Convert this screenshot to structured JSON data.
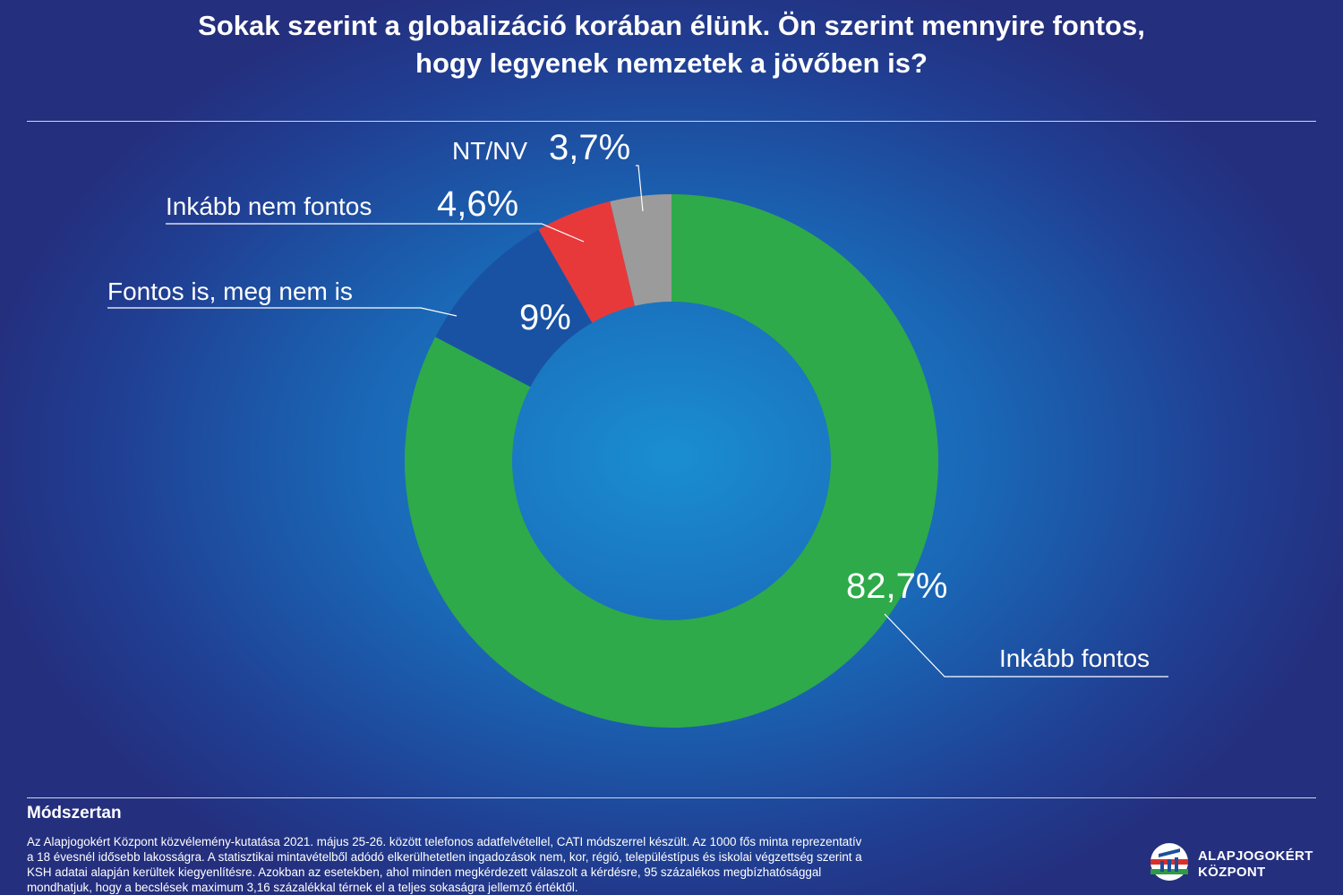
{
  "title": {
    "line1": "Sokak szerint a globalizáció korában élünk. Ön szerint mennyire fontos,",
    "line2": "hogy legyenek nemzetek a jövőben is?"
  },
  "chart_data": {
    "type": "pie",
    "title": "Sokak szerint a globalizáció korában élünk. Ön szerint mennyire fontos, hogy legyenek nemzetek a jövőben is?",
    "unit": "%",
    "slices": [
      {
        "name": "Inkább fontos",
        "value": 82.7,
        "label": "82,7%",
        "color": "#2eaa4a"
      },
      {
        "name": "Fontos is, meg nem is",
        "value": 9.0,
        "label": "9%",
        "color": "#1a52a3"
      },
      {
        "name": "Inkább nem fontos",
        "value": 4.6,
        "label": "4,6%",
        "color": "#e8393a"
      },
      {
        "name": "NT/NV",
        "value": 3.7,
        "label": "3,7%",
        "color": "#9b9b9b"
      }
    ]
  },
  "methodology": {
    "heading": "Módszertan",
    "lines": [
      "Az Alapjogokért Központ közvélemény-kutatása 2021. május 25-26. között telefonos adatfelvétellel, CATI módszerrel készült. Az 1000 fős minta reprezentatív",
      "a 18 évesnél idősebb lakosságra. A statisztikai mintavételből adódó elkerülhetetlen ingadozások nem, kor, régió, településtípus és iskolai végzettség szerint a",
      "KSH adatai alapján kerültek kiegyenlítésre. Azokban az esetekben, ahol minden megkérdezett válaszolt a kérdésre, 95 százalékos megbízhatósággal",
      "mondhatjuk, hogy a becslések maximum 3,16 százalékkal térnek el a teljes sokaságra jellemző értéktől."
    ]
  },
  "logo": {
    "line1": "ALAPJOGOKÉRT",
    "line2": "KÖZPONT"
  }
}
